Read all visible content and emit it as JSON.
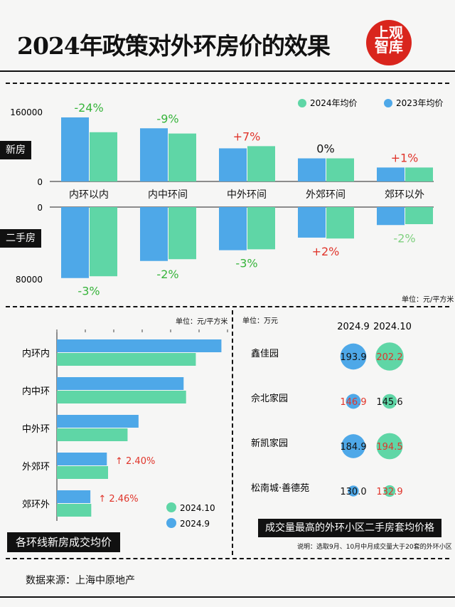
{
  "header": {
    "title": "2024年政策对外环房价的效果",
    "logo_line1": "上观",
    "logo_line2": "智库"
  },
  "colors": {
    "blue": "#4ea8e8",
    "green": "#5fd6a6",
    "red": "#e0352b",
    "pos_green": "#37b43b",
    "light_green": "#7fd07f"
  },
  "chart_data": [
    {
      "type": "bar",
      "title": "",
      "categories": [
        "内环以内",
        "内中环间",
        "中外环间",
        "外郊环间",
        "郊环以外"
      ],
      "series": [
        {
          "name": "2023年均价",
          "color": "#4ea8e8"
        },
        {
          "name": "2024年均价",
          "color": "#5fd6a6"
        }
      ],
      "new_house": {
        "label": "新房",
        "ylim": [
          0,
          160000
        ],
        "y_ticks": [
          "160000",
          "0"
        ],
        "values_2023": [
          147000,
          122000,
          76000,
          53000,
          32000
        ],
        "values_2024": [
          113000,
          110000,
          81000,
          53000,
          32000
        ],
        "changes": [
          "-24%",
          "-9%",
          "+7%",
          "0%",
          "+1%"
        ],
        "change_colors": [
          "#37b43b",
          "#37b43b",
          "#e0352b",
          "#111111",
          "#e0352b"
        ]
      },
      "second_hand": {
        "label": "二手房",
        "ylim": [
          0,
          80000
        ],
        "y_ticks": [
          "0",
          "80000"
        ],
        "values_2023": [
          79000,
          60000,
          48000,
          34000,
          20000
        ],
        "values_2024": [
          77000,
          58000,
          47000,
          35000,
          19000
        ],
        "changes": [
          "-3%",
          "-2%",
          "-3%",
          "+2%",
          "-2%"
        ],
        "change_colors": [
          "#37b43b",
          "#37b43b",
          "#37b43b",
          "#e0352b",
          "#7fd07f"
        ]
      },
      "unit": "单位：元/平方米"
    },
    {
      "type": "bar",
      "orientation": "horizontal",
      "title": "各环线新房成交均价",
      "unit": "单位：元/平方米",
      "categories": [
        "内环内",
        "内中环",
        "中外环",
        "外郊环",
        "郊环外"
      ],
      "series": [
        {
          "name": "2024.9",
          "color": "#4ea8e8",
          "values": [
            135000,
            104000,
            67000,
            41000,
            27500
          ]
        },
        {
          "name": "2024.10",
          "color": "#5fd6a6",
          "values": [
            114000,
            106000,
            58000,
            42000,
            28200
          ]
        }
      ],
      "annotations": [
        {
          "category": "外郊环",
          "text": "↑ 2.40%"
        },
        {
          "category": "郊环外",
          "text": "↑ 2.46%"
        }
      ],
      "xlim": [
        0,
        140000
      ]
    },
    {
      "type": "table",
      "title": "成交量最高的外环小区二手房套均价格",
      "unit": "单位：万元",
      "columns": [
        "2024.9",
        "2024.10"
      ],
      "rows": [
        {
          "name": "鑫佳园",
          "sep": 193.9,
          "oct": 202.2,
          "oct_color": "#e0352b"
        },
        {
          "name": "佘北家园",
          "sep": 146.9,
          "oct": 145.6,
          "oct_color": "#111111",
          "sep_color": "#e0352b"
        },
        {
          "name": "新凯家园",
          "sep": 184.9,
          "oct": 194.5,
          "oct_color": "#e0352b"
        },
        {
          "name": "松南城·善德苑",
          "sep": 130.0,
          "oct": 132.9,
          "oct_color": "#e0352b"
        }
      ],
      "note": "说明：选取9月、10月中月成交量大于20套的外环小区"
    }
  ],
  "footer": {
    "source": "数据来源：上海中原地产"
  }
}
